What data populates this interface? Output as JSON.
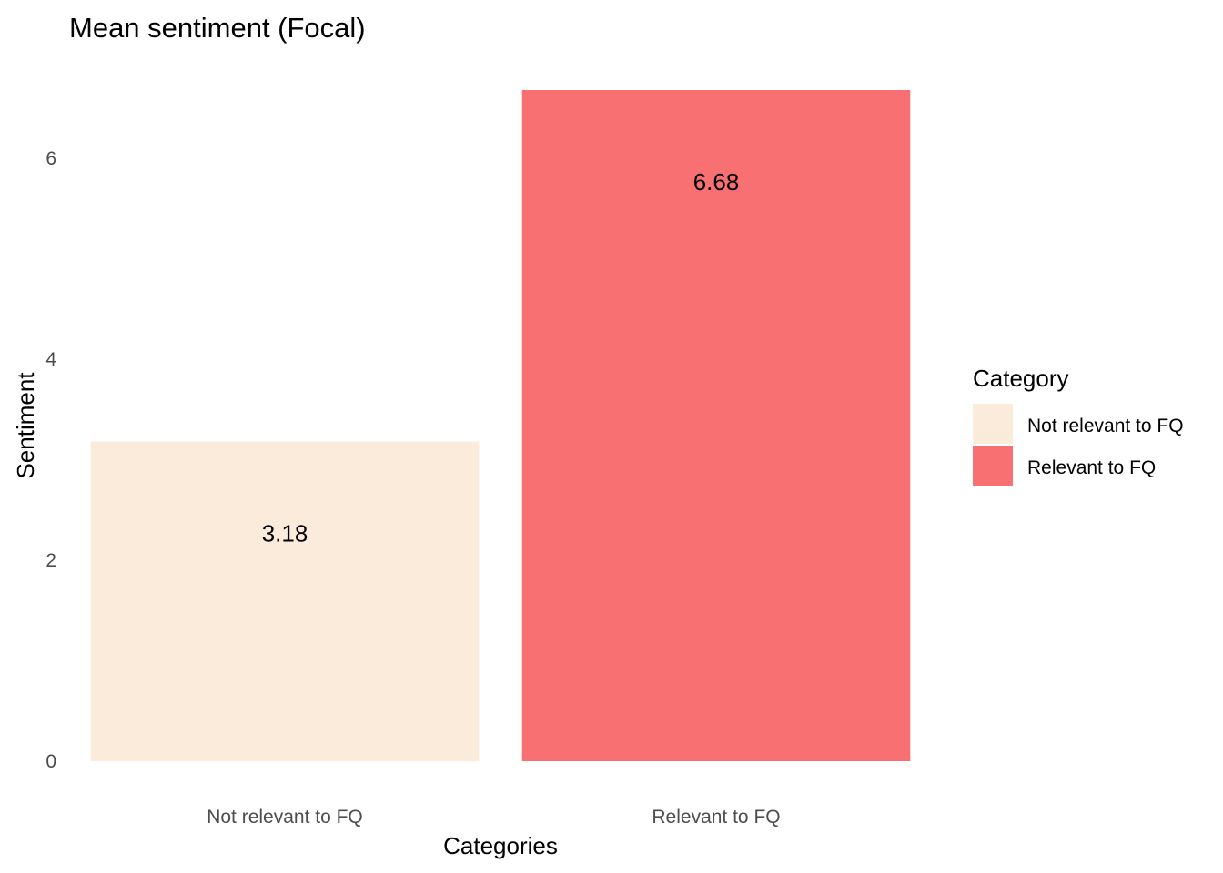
{
  "chart_data": {
    "type": "bar",
    "title": "Mean sentiment (Focal)",
    "xlabel": "Categories",
    "ylabel": "Sentiment",
    "categories": [
      "Not relevant to FQ",
      "Relevant to FQ"
    ],
    "values": [
      3.18,
      6.68
    ],
    "value_labels": [
      "3.18",
      "6.68"
    ],
    "colors": [
      "#FAEBDA",
      "#F87071"
    ],
    "ylim": [
      0,
      6.68
    ],
    "yticks": [
      0,
      2,
      4,
      6
    ],
    "grid": false,
    "legend": {
      "title": "Category",
      "position": "right",
      "entries": [
        "Not relevant to FQ",
        "Relevant to FQ"
      ]
    }
  }
}
